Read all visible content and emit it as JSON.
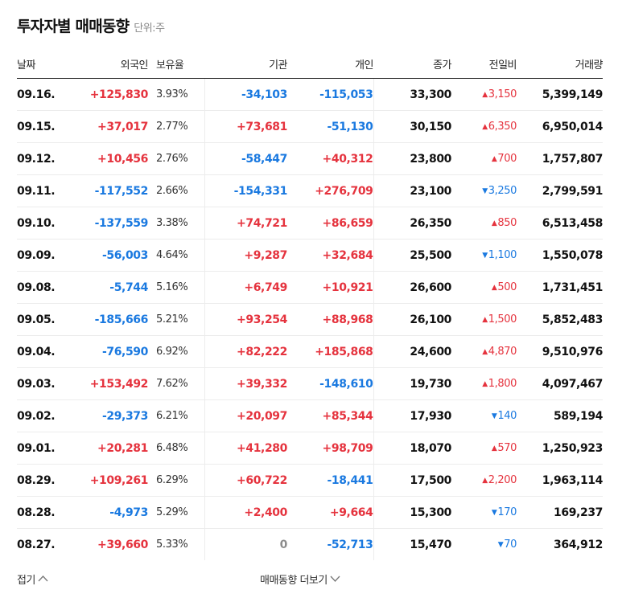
{
  "header": {
    "title": "투자자별 매매동향",
    "unit": "단위:주"
  },
  "columns": [
    "날짜",
    "외국인",
    "보유율",
    "기관",
    "개인",
    "종가",
    "전일비",
    "거래량"
  ],
  "rows": [
    {
      "date": "09.16.",
      "foreign": "+125,830",
      "own": "3.93%",
      "inst": "-34,103",
      "indiv": "-115,053",
      "close": "33,300",
      "change": "3,150",
      "dir": "up",
      "volume": "5,399,149"
    },
    {
      "date": "09.15.",
      "foreign": "+37,017",
      "own": "2.77%",
      "inst": "+73,681",
      "indiv": "-51,130",
      "close": "30,150",
      "change": "6,350",
      "dir": "up",
      "volume": "6,950,014"
    },
    {
      "date": "09.12.",
      "foreign": "+10,456",
      "own": "2.76%",
      "inst": "-58,447",
      "indiv": "+40,312",
      "close": "23,800",
      "change": "700",
      "dir": "up",
      "volume": "1,757,807"
    },
    {
      "date": "09.11.",
      "foreign": "-117,552",
      "own": "2.66%",
      "inst": "-154,331",
      "indiv": "+276,709",
      "close": "23,100",
      "change": "3,250",
      "dir": "down",
      "volume": "2,799,591"
    },
    {
      "date": "09.10.",
      "foreign": "-137,559",
      "own": "3.38%",
      "inst": "+74,721",
      "indiv": "+86,659",
      "close": "26,350",
      "change": "850",
      "dir": "up",
      "volume": "6,513,458"
    },
    {
      "date": "09.09.",
      "foreign": "-56,003",
      "own": "4.64%",
      "inst": "+9,287",
      "indiv": "+32,684",
      "close": "25,500",
      "change": "1,100",
      "dir": "down",
      "volume": "1,550,078"
    },
    {
      "date": "09.08.",
      "foreign": "-5,744",
      "own": "5.16%",
      "inst": "+6,749",
      "indiv": "+10,921",
      "close": "26,600",
      "change": "500",
      "dir": "up",
      "volume": "1,731,451"
    },
    {
      "date": "09.05.",
      "foreign": "-185,666",
      "own": "5.21%",
      "inst": "+93,254",
      "indiv": "+88,968",
      "close": "26,100",
      "change": "1,500",
      "dir": "up",
      "volume": "5,852,483"
    },
    {
      "date": "09.04.",
      "foreign": "-76,590",
      "own": "6.92%",
      "inst": "+82,222",
      "indiv": "+185,868",
      "close": "24,600",
      "change": "4,870",
      "dir": "up",
      "volume": "9,510,976"
    },
    {
      "date": "09.03.",
      "foreign": "+153,492",
      "own": "7.62%",
      "inst": "+39,332",
      "indiv": "-148,610",
      "close": "19,730",
      "change": "1,800",
      "dir": "up",
      "volume": "4,097,467"
    },
    {
      "date": "09.02.",
      "foreign": "-29,373",
      "own": "6.21%",
      "inst": "+20,097",
      "indiv": "+85,344",
      "close": "17,930",
      "change": "140",
      "dir": "down",
      "volume": "589,194"
    },
    {
      "date": "09.01.",
      "foreign": "+20,281",
      "own": "6.48%",
      "inst": "+41,280",
      "indiv": "+98,709",
      "close": "18,070",
      "change": "570",
      "dir": "up",
      "volume": "1,250,923"
    },
    {
      "date": "08.29.",
      "foreign": "+109,261",
      "own": "6.29%",
      "inst": "+60,722",
      "indiv": "-18,441",
      "close": "17,500",
      "change": "2,200",
      "dir": "up",
      "volume": "1,963,114"
    },
    {
      "date": "08.28.",
      "foreign": "-4,973",
      "own": "5.29%",
      "inst": "+2,400",
      "indiv": "+9,664",
      "close": "15,300",
      "change": "170",
      "dir": "down",
      "volume": "169,237"
    },
    {
      "date": "08.27.",
      "foreign": "+39,660",
      "own": "5.33%",
      "inst": "0",
      "indiv": "-52,713",
      "close": "15,470",
      "change": "70",
      "dir": "down",
      "volume": "364,912"
    }
  ],
  "footer": {
    "collapse_label": "접기",
    "more_label": "매매동향 더보기"
  },
  "colors": {
    "up": "#e5333e",
    "down": "#1a79e0",
    "neutral": "#8c8c8c"
  },
  "icons": {
    "up": "triangle-up-icon",
    "down": "triangle-down-icon",
    "collapse": "chevron-up-icon",
    "more": "chevron-down-icon"
  }
}
